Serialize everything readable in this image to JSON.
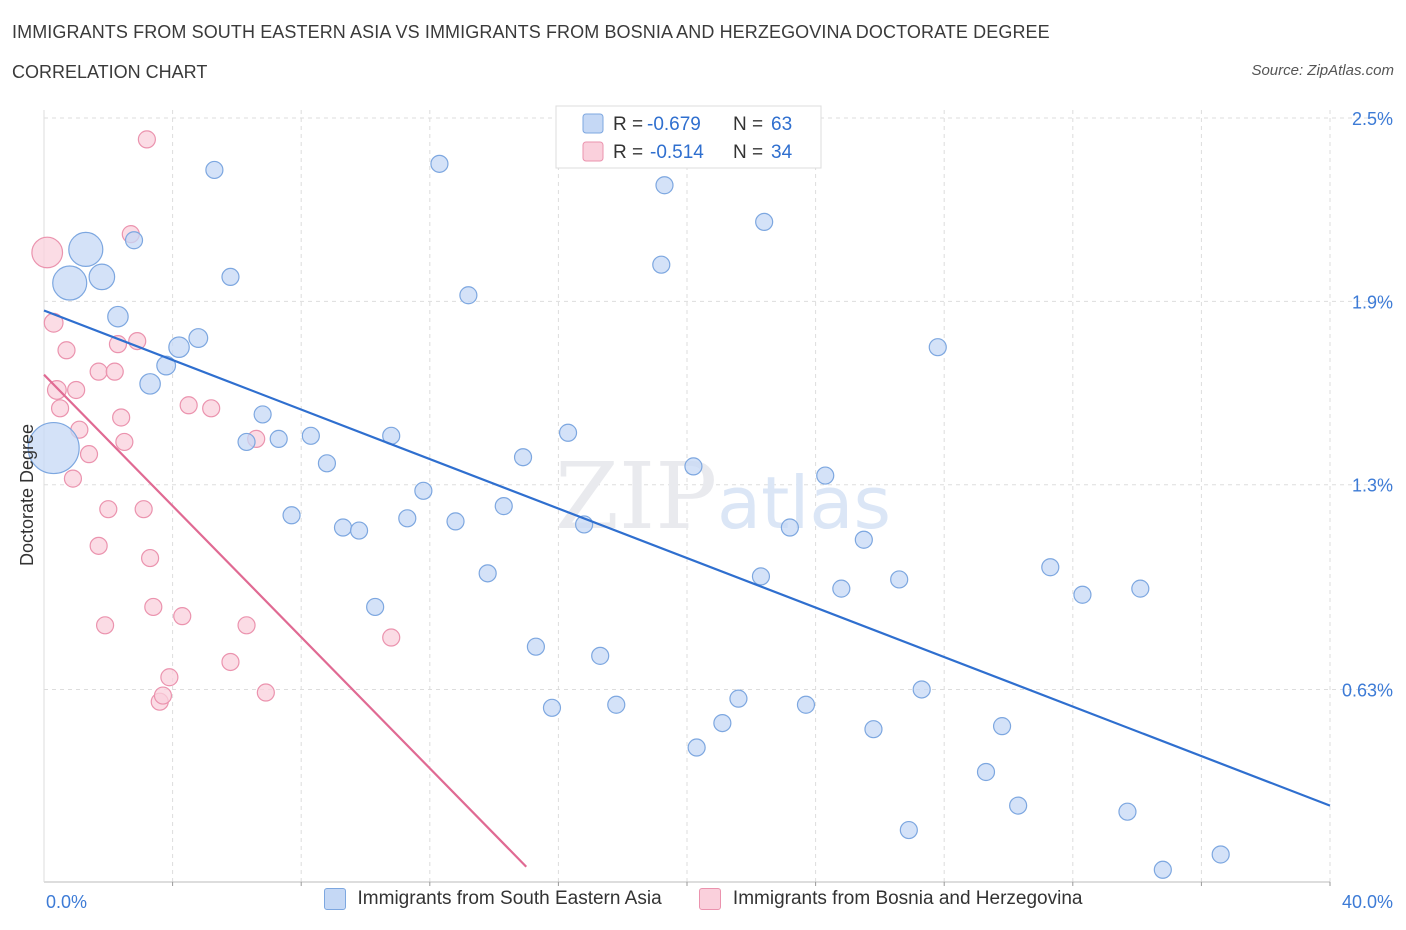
{
  "header": {
    "title": "IMMIGRANTS FROM SOUTH EASTERN ASIA VS IMMIGRANTS FROM BOSNIA AND HERZEGOVINA DOCTORATE DEGREE",
    "subtitle": "CORRELATION CHART",
    "source": "Source: ZipAtlas.com"
  },
  "watermark": {
    "zip": "ZIP",
    "atlas": "atlas"
  },
  "stats": [
    {
      "r_label": "R =",
      "r_value": "-0.679",
      "n_label": "N =",
      "n_value": "63"
    },
    {
      "r_label": "R =",
      "r_value": "-0.514",
      "n_label": "N =",
      "n_value": "34"
    }
  ],
  "legend": [
    {
      "label": "Immigrants from South Eastern Asia"
    },
    {
      "label": "Immigrants from Bosnia and Herzegovina"
    }
  ],
  "colors": {
    "blue_fill": "#c5d8f5",
    "blue_stroke": "#7da7e0",
    "blue_line": "#2f6fcf",
    "pink_fill": "#fad0dc",
    "pink_stroke": "#eb93ae",
    "pink_line": "#e06a93",
    "tick_label": "#3d7bd6",
    "grid": "#dddddd"
  },
  "chart_data": {
    "type": "scatter",
    "title": "IMMIGRANTS FROM SOUTH EASTERN ASIA VS IMMIGRANTS FROM BOSNIA AND HERZEGOVINA DOCTORATE DEGREE",
    "xlabel": "",
    "ylabel": "Doctorate Degree",
    "xlim": [
      0,
      40
    ],
    "ylim": [
      0,
      2.5
    ],
    "x_tick_labels": [
      "0.0%",
      "40.0%"
    ],
    "y_ticks": [
      0.63,
      1.3,
      1.9,
      2.5
    ],
    "y_tick_labels": [
      "0.63%",
      "1.3%",
      "1.9%",
      "2.5%"
    ],
    "series": [
      {
        "name": "Immigrants from South Eastern Asia",
        "r": -0.679,
        "n": 63,
        "trend": {
          "x": [
            0,
            40
          ],
          "y": [
            1.87,
            0.25
          ]
        },
        "points": [
          {
            "x": 0.3,
            "y": 1.42,
            "s": 3
          },
          {
            "x": 0.8,
            "y": 1.96,
            "s": 2
          },
          {
            "x": 1.3,
            "y": 2.07,
            "s": 2
          },
          {
            "x": 1.8,
            "y": 1.98,
            "s": 1.5
          },
          {
            "x": 2.3,
            "y": 1.85,
            "s": 1.2
          },
          {
            "x": 2.8,
            "y": 2.1,
            "s": 1
          },
          {
            "x": 3.3,
            "y": 1.63,
            "s": 1.2
          },
          {
            "x": 3.8,
            "y": 1.69,
            "s": 1.1
          },
          {
            "x": 4.2,
            "y": 1.75,
            "s": 1.2
          },
          {
            "x": 4.8,
            "y": 1.78,
            "s": 1.1
          },
          {
            "x": 5.3,
            "y": 2.33,
            "s": 1
          },
          {
            "x": 5.8,
            "y": 1.98,
            "s": 1
          },
          {
            "x": 6.3,
            "y": 1.44,
            "s": 1
          },
          {
            "x": 6.8,
            "y": 1.53,
            "s": 1
          },
          {
            "x": 7.3,
            "y": 1.45,
            "s": 1
          },
          {
            "x": 7.7,
            "y": 1.2,
            "s": 1
          },
          {
            "x": 8.3,
            "y": 1.46,
            "s": 1
          },
          {
            "x": 8.8,
            "y": 1.37,
            "s": 1
          },
          {
            "x": 9.3,
            "y": 1.16,
            "s": 1
          },
          {
            "x": 9.8,
            "y": 1.15,
            "s": 1
          },
          {
            "x": 10.3,
            "y": 0.9,
            "s": 1
          },
          {
            "x": 10.8,
            "y": 1.46,
            "s": 1
          },
          {
            "x": 11.3,
            "y": 1.19,
            "s": 1
          },
          {
            "x": 11.8,
            "y": 1.28,
            "s": 1
          },
          {
            "x": 12.3,
            "y": 2.35,
            "s": 1
          },
          {
            "x": 12.8,
            "y": 1.18,
            "s": 1
          },
          {
            "x": 13.2,
            "y": 1.92,
            "s": 1
          },
          {
            "x": 13.8,
            "y": 1.01,
            "s": 1
          },
          {
            "x": 14.3,
            "y": 1.23,
            "s": 1
          },
          {
            "x": 14.9,
            "y": 1.39,
            "s": 1
          },
          {
            "x": 15.3,
            "y": 0.77,
            "s": 1
          },
          {
            "x": 15.8,
            "y": 0.57,
            "s": 1
          },
          {
            "x": 16.3,
            "y": 1.47,
            "s": 1
          },
          {
            "x": 16.8,
            "y": 1.17,
            "s": 1
          },
          {
            "x": 17.3,
            "y": 0.74,
            "s": 1
          },
          {
            "x": 17.8,
            "y": 0.58,
            "s": 1
          },
          {
            "x": 19.2,
            "y": 2.02,
            "s": 1
          },
          {
            "x": 19.3,
            "y": 2.28,
            "s": 1
          },
          {
            "x": 20.2,
            "y": 1.36,
            "s": 1
          },
          {
            "x": 20.3,
            "y": 0.44,
            "s": 1
          },
          {
            "x": 21.1,
            "y": 0.52,
            "s": 1
          },
          {
            "x": 21.6,
            "y": 0.6,
            "s": 1
          },
          {
            "x": 22.3,
            "y": 1.0,
            "s": 1
          },
          {
            "x": 22.4,
            "y": 2.16,
            "s": 1
          },
          {
            "x": 23.2,
            "y": 1.16,
            "s": 1
          },
          {
            "x": 23.7,
            "y": 0.58,
            "s": 1
          },
          {
            "x": 24.3,
            "y": 1.33,
            "s": 1
          },
          {
            "x": 24.8,
            "y": 0.96,
            "s": 1
          },
          {
            "x": 25.5,
            "y": 1.12,
            "s": 1
          },
          {
            "x": 25.8,
            "y": 0.5,
            "s": 1
          },
          {
            "x": 26.6,
            "y": 0.99,
            "s": 1
          },
          {
            "x": 26.9,
            "y": 0.17,
            "s": 1
          },
          {
            "x": 27.3,
            "y": 0.63,
            "s": 1
          },
          {
            "x": 27.8,
            "y": 1.75,
            "s": 1
          },
          {
            "x": 29.3,
            "y": 0.36,
            "s": 1
          },
          {
            "x": 29.8,
            "y": 0.51,
            "s": 1
          },
          {
            "x": 30.3,
            "y": 0.25,
            "s": 1
          },
          {
            "x": 31.3,
            "y": 1.03,
            "s": 1
          },
          {
            "x": 32.3,
            "y": 0.94,
            "s": 1
          },
          {
            "x": 33.7,
            "y": 0.23,
            "s": 1
          },
          {
            "x": 34.1,
            "y": 0.96,
            "s": 1
          },
          {
            "x": 34.8,
            "y": 0.04,
            "s": 1
          },
          {
            "x": 36.6,
            "y": 0.09,
            "s": 1
          }
        ]
      },
      {
        "name": "Immigrants from Bosnia and Herzegovina",
        "r": -0.514,
        "n": 34,
        "trend": {
          "x": [
            0,
            15
          ],
          "y": [
            1.66,
            0.05
          ]
        },
        "points": [
          {
            "x": 0.1,
            "y": 2.06,
            "s": 1.8
          },
          {
            "x": 0.3,
            "y": 1.83,
            "s": 1.1
          },
          {
            "x": 0.4,
            "y": 1.61,
            "s": 1.1
          },
          {
            "x": 0.5,
            "y": 1.55,
            "s": 1
          },
          {
            "x": 0.7,
            "y": 1.74,
            "s": 1
          },
          {
            "x": 0.9,
            "y": 1.32,
            "s": 1
          },
          {
            "x": 1.0,
            "y": 1.61,
            "s": 1
          },
          {
            "x": 1.1,
            "y": 1.48,
            "s": 1
          },
          {
            "x": 1.4,
            "y": 1.4,
            "s": 1
          },
          {
            "x": 1.7,
            "y": 1.67,
            "s": 1
          },
          {
            "x": 1.7,
            "y": 1.1,
            "s": 1
          },
          {
            "x": 1.9,
            "y": 0.84,
            "s": 1
          },
          {
            "x": 2.0,
            "y": 1.22,
            "s": 1
          },
          {
            "x": 2.2,
            "y": 1.67,
            "s": 1
          },
          {
            "x": 2.3,
            "y": 1.76,
            "s": 1
          },
          {
            "x": 2.4,
            "y": 1.52,
            "s": 1
          },
          {
            "x": 2.5,
            "y": 1.44,
            "s": 1
          },
          {
            "x": 2.7,
            "y": 2.12,
            "s": 1
          },
          {
            "x": 2.9,
            "y": 1.77,
            "s": 1
          },
          {
            "x": 3.1,
            "y": 1.22,
            "s": 1
          },
          {
            "x": 3.2,
            "y": 2.43,
            "s": 1
          },
          {
            "x": 3.3,
            "y": 1.06,
            "s": 1
          },
          {
            "x": 3.4,
            "y": 0.9,
            "s": 1
          },
          {
            "x": 3.6,
            "y": 0.59,
            "s": 1
          },
          {
            "x": 3.7,
            "y": 0.61,
            "s": 1
          },
          {
            "x": 3.9,
            "y": 0.67,
            "s": 1
          },
          {
            "x": 4.3,
            "y": 0.87,
            "s": 1
          },
          {
            "x": 4.5,
            "y": 1.56,
            "s": 1
          },
          {
            "x": 5.2,
            "y": 1.55,
            "s": 1
          },
          {
            "x": 5.8,
            "y": 0.72,
            "s": 1
          },
          {
            "x": 6.3,
            "y": 0.84,
            "s": 1
          },
          {
            "x": 6.6,
            "y": 1.45,
            "s": 1
          },
          {
            "x": 6.9,
            "y": 0.62,
            "s": 1
          },
          {
            "x": 10.8,
            "y": 0.8,
            "s": 1
          }
        ]
      }
    ]
  }
}
